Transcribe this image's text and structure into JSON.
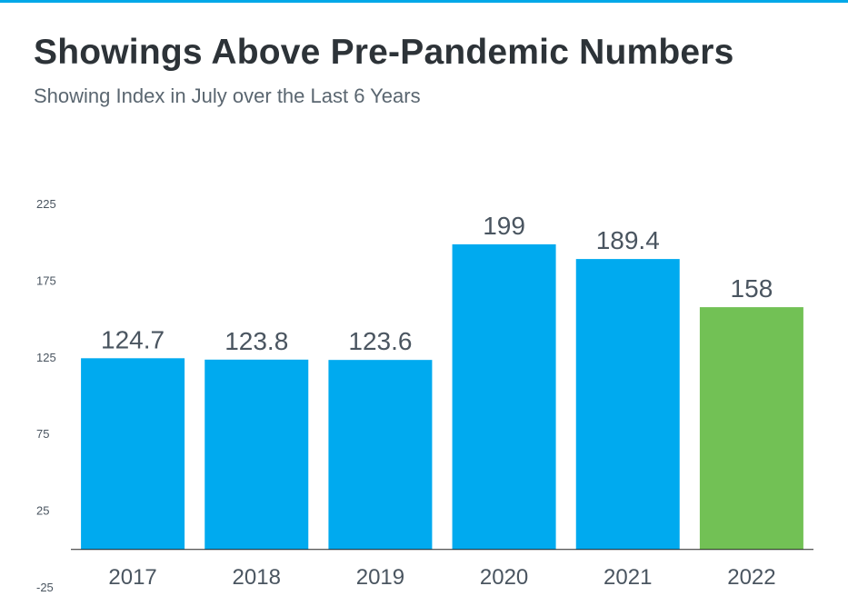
{
  "header": {
    "title": "Showings Above Pre-Pandemic Numbers",
    "subtitle": "Showing Index in July over the Last 6 Years"
  },
  "colors": {
    "accent": "#00a8e8",
    "bar_default": "#00aaef",
    "bar_highlight": "#72c155",
    "text": "#4a5560"
  },
  "chart_data": {
    "type": "bar",
    "title": "Showings Above Pre-Pandemic Numbers",
    "subtitle": "Showing Index in July over the Last 6 Years",
    "categories": [
      "2017",
      "2018",
      "2019",
      "2020",
      "2021",
      "2022"
    ],
    "values": [
      124.7,
      123.8,
      123.6,
      199,
      189.4,
      158
    ],
    "value_labels": [
      "124.7",
      "123.8",
      "123.6",
      "199",
      "189.4",
      "158"
    ],
    "highlight_index": 5,
    "ylim": [
      -25,
      225
    ],
    "yticks": [
      -25,
      25,
      75,
      125,
      175,
      225
    ],
    "ytick_labels": [
      "-25",
      "25",
      "75",
      "125",
      "175",
      "225"
    ],
    "baseline": 0,
    "grid": false,
    "legend": "none",
    "xlabel": "",
    "ylabel": ""
  }
}
